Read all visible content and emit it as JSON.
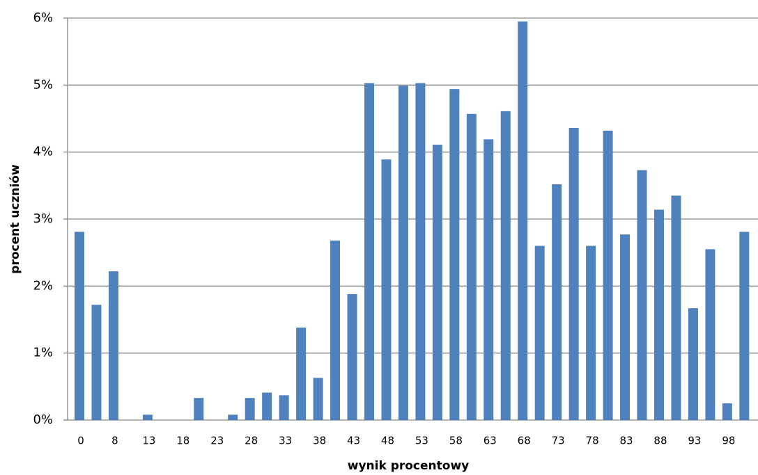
{
  "chart_data": {
    "type": "bar",
    "x_label": "wynik procentowy",
    "y_label": "procent uczniów",
    "categories": [
      "0",
      null,
      "8",
      null,
      "13",
      null,
      "18",
      null,
      "23",
      null,
      "28",
      null,
      "33",
      null,
      "38",
      null,
      "43",
      null,
      "48",
      null,
      "53",
      null,
      "58",
      null,
      "63",
      null,
      "68",
      null,
      "73",
      null,
      "78",
      null,
      "83",
      null,
      "88",
      null,
      "93",
      null,
      "98",
      null
    ],
    "values": [
      2.81,
      1.72,
      2.22,
      0,
      0.08,
      0,
      0,
      0.33,
      0,
      0.08,
      0.33,
      0.41,
      0.37,
      1.38,
      0.63,
      2.68,
      1.88,
      5.03,
      3.89,
      4.99,
      5.03,
      4.11,
      4.94,
      4.57,
      4.19,
      4.61,
      5.95,
      2.6,
      3.52,
      4.36,
      2.6,
      4.32,
      2.77,
      3.73,
      3.14,
      3.35,
      1.67,
      2.55,
      0.25,
      2.81
    ],
    "color": "#4f81bd",
    "ylim": [
      0,
      6
    ],
    "yticks": [
      {
        "value": 0,
        "label": "0%"
      },
      {
        "value": 1,
        "label": "1%"
      },
      {
        "value": 2,
        "label": "2%"
      },
      {
        "value": 3,
        "label": "3%"
      },
      {
        "value": 4,
        "label": "4%"
      },
      {
        "value": 5,
        "label": "5%"
      },
      {
        "value": 6,
        "label": "6%"
      }
    ],
    "grid": true
  }
}
